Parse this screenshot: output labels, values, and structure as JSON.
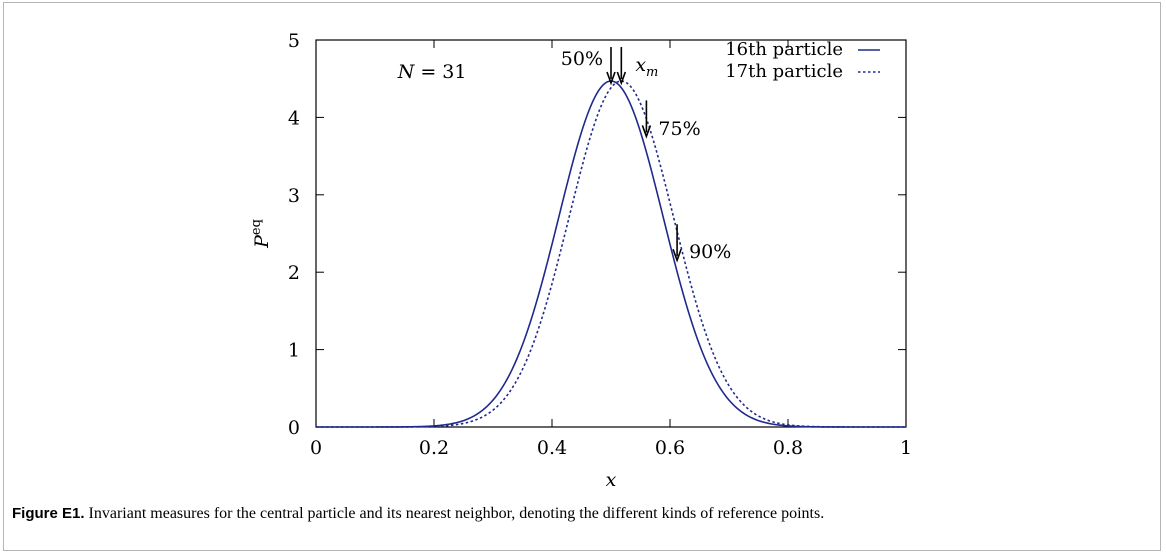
{
  "chart_data": {
    "type": "line",
    "xlabel": "x",
    "ylabel_base": "P",
    "ylabel_sup": "eq",
    "xlim": [
      0,
      1
    ],
    "ylim": [
      0,
      5
    ],
    "x_ticks": [
      0,
      0.2,
      0.4,
      0.6,
      0.8,
      1
    ],
    "x_tick_labels": [
      "0",
      "0.2",
      "0.4",
      "0.6",
      "0.8",
      "1"
    ],
    "y_ticks": [
      0,
      1,
      2,
      3,
      4,
      5
    ],
    "y_tick_labels": [
      "0",
      "1",
      "2",
      "3",
      "4",
      "5"
    ],
    "legend_position": "top-right",
    "series": [
      {
        "name": "16th particle",
        "style": "solid",
        "color": "#1f2a8c",
        "mean": 0.5,
        "sd": 0.0885,
        "peak": 4.47
      },
      {
        "name": "17th particle",
        "style": "dotted",
        "color": "#1f2a8c",
        "mean": 0.5175,
        "sd": 0.0885,
        "peak": 4.47
      }
    ],
    "annotations": [
      {
        "label": "N = 31",
        "math_left": "N",
        "math_right": "31",
        "x": 0.13,
        "y": 4.6
      },
      {
        "label": "50%",
        "arrow_x": 0.5,
        "arrow_y": 4.47,
        "side": "left"
      },
      {
        "label": "x_m",
        "math_base": "x",
        "math_sub": "m",
        "arrow_x": 0.5175,
        "arrow_y": 4.47,
        "side": "right"
      },
      {
        "label": "75%",
        "arrow_x": 0.56,
        "arrow_y": 3.78,
        "side": "right"
      },
      {
        "label": "90%",
        "arrow_x": 0.612,
        "arrow_y": 2.18,
        "side": "right"
      }
    ]
  },
  "caption": {
    "label": "Figure E1.",
    "text": " Invariant measures for the central particle and its nearest neighbor, denoting the different kinds of reference points."
  }
}
